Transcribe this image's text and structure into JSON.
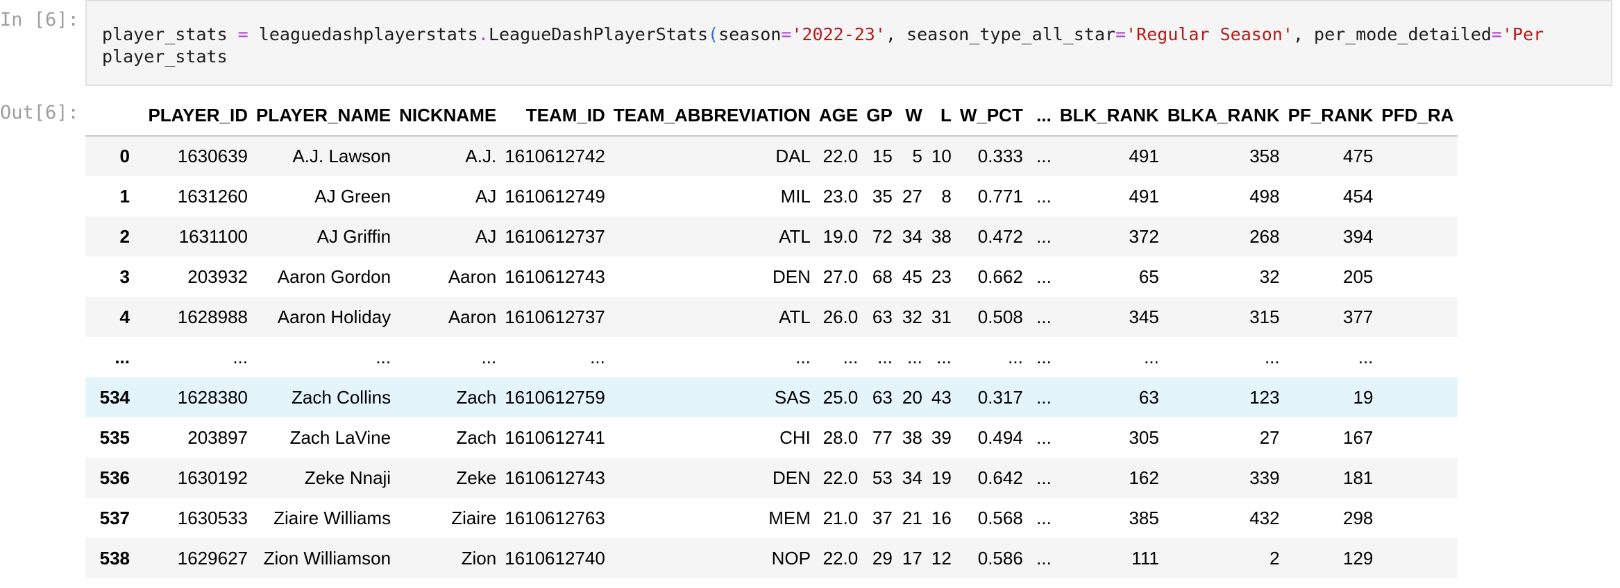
{
  "input_prompt": "In [6]:",
  "output_prompt": "Out[6]:",
  "code": {
    "line1": {
      "var": "player_stats ",
      "eq": "=",
      "call_start": " leaguedashplayerstats",
      "dot": ".",
      "cls": "LeagueDashPlayerStats",
      "paren": "(",
      "arg1": "season",
      "arg1_eq": "=",
      "arg1_val": "'2022-23'",
      "sep1": ", season_type_all_star",
      "arg2_eq": "=",
      "arg2_val": "'Regular Season'",
      "sep2": ", per_mode_detailed",
      "arg3_eq": "=",
      "arg3_val": "'Per"
    },
    "line2": "player_stats"
  },
  "table": {
    "columns": [
      "",
      "PLAYER_ID",
      "PLAYER_NAME",
      "NICKNAME",
      "TEAM_ID",
      "TEAM_ABBREVIATION",
      "AGE",
      "GP",
      "W",
      "L",
      "W_PCT",
      "...",
      "BLK_RANK",
      "BLKA_RANK",
      "PF_RANK",
      "PFD_RA"
    ],
    "rows": [
      [
        "0",
        "1630639",
        "A.J. Lawson",
        "A.J.",
        "1610612742",
        "DAL",
        "22.0",
        "15",
        "5",
        "10",
        "0.333",
        "...",
        "491",
        "358",
        "475",
        ""
      ],
      [
        "1",
        "1631260",
        "AJ Green",
        "AJ",
        "1610612749",
        "MIL",
        "23.0",
        "35",
        "27",
        "8",
        "0.771",
        "...",
        "491",
        "498",
        "454",
        ""
      ],
      [
        "2",
        "1631100",
        "AJ Griffin",
        "AJ",
        "1610612737",
        "ATL",
        "19.0",
        "72",
        "34",
        "38",
        "0.472",
        "...",
        "372",
        "268",
        "394",
        ""
      ],
      [
        "3",
        "203932",
        "Aaron Gordon",
        "Aaron",
        "1610612743",
        "DEN",
        "27.0",
        "68",
        "45",
        "23",
        "0.662",
        "...",
        "65",
        "32",
        "205",
        ""
      ],
      [
        "4",
        "1628988",
        "Aaron Holiday",
        "Aaron",
        "1610612737",
        "ATL",
        "26.0",
        "63",
        "32",
        "31",
        "0.508",
        "...",
        "345",
        "315",
        "377",
        ""
      ],
      [
        "...",
        "...",
        "...",
        "...",
        "...",
        "...",
        "...",
        "...",
        "...",
        "...",
        "...",
        "...",
        "...",
        "...",
        "...",
        ""
      ],
      [
        "534",
        "1628380",
        "Zach Collins",
        "Zach",
        "1610612759",
        "SAS",
        "25.0",
        "63",
        "20",
        "43",
        "0.317",
        "...",
        "63",
        "123",
        "19",
        ""
      ],
      [
        "535",
        "203897",
        "Zach LaVine",
        "Zach",
        "1610612741",
        "CHI",
        "28.0",
        "77",
        "38",
        "39",
        "0.494",
        "...",
        "305",
        "27",
        "167",
        ""
      ],
      [
        "536",
        "1630192",
        "Zeke Nnaji",
        "Zeke",
        "1610612743",
        "DEN",
        "22.0",
        "53",
        "34",
        "19",
        "0.642",
        "...",
        "162",
        "339",
        "181",
        ""
      ],
      [
        "537",
        "1630533",
        "Ziaire Williams",
        "Ziaire",
        "1610612763",
        "MEM",
        "21.0",
        "37",
        "21",
        "16",
        "0.568",
        "...",
        "385",
        "432",
        "298",
        ""
      ],
      [
        "538",
        "1629627",
        "Zion Williamson",
        "Zion",
        "1610612740",
        "NOP",
        "22.0",
        "29",
        "17",
        "12",
        "0.586",
        "...",
        "111",
        "2",
        "129",
        ""
      ]
    ],
    "hover_row_index": 6
  },
  "colors": {
    "code_bg": "#f5f5f5",
    "keyword_op": "#b044d6",
    "string": "#b31b1b",
    "paren": "#2f74c0",
    "row_stripe": "#f5f5f5",
    "row_hover": "#e4f4fb"
  }
}
